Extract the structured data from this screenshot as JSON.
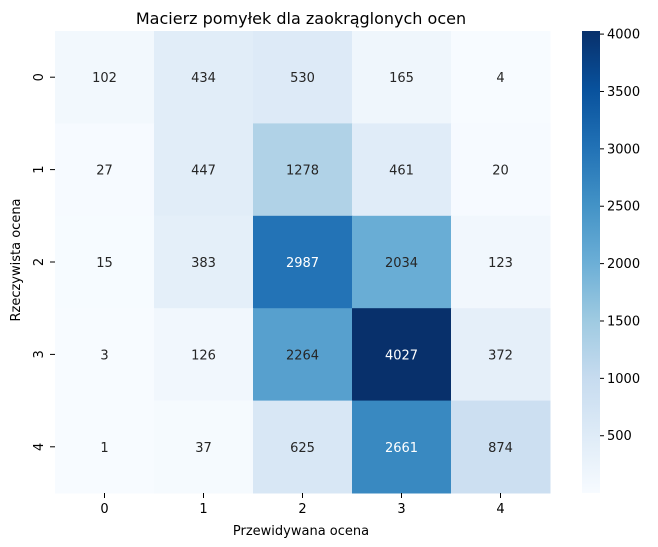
{
  "chart_data": {
    "type": "heatmap",
    "title": "Macierz pomyłek dla zaokrąglonych ocen",
    "xlabel": "Przewidywana ocena",
    "ylabel": "Rzeczywista ocena",
    "x_categories": [
      "0",
      "1",
      "2",
      "3",
      "4"
    ],
    "y_categories": [
      "0",
      "1",
      "2",
      "3",
      "4"
    ],
    "values": [
      [
        102,
        434,
        530,
        165,
        4
      ],
      [
        27,
        447,
        1278,
        461,
        20
      ],
      [
        15,
        383,
        2987,
        2034,
        123
      ],
      [
        3,
        126,
        2264,
        4027,
        372
      ],
      [
        1,
        37,
        625,
        2661,
        874
      ]
    ],
    "colorscale": "Blues",
    "vmin": 1,
    "vmax": 4027,
    "colorbar_ticks": [
      500,
      1000,
      1500,
      2000,
      2500,
      3000,
      3500,
      4000
    ],
    "colorbar_tick_labels": [
      "500",
      "1000",
      "1500",
      "2000",
      "2500",
      "3000",
      "3500",
      "4000"
    ]
  }
}
